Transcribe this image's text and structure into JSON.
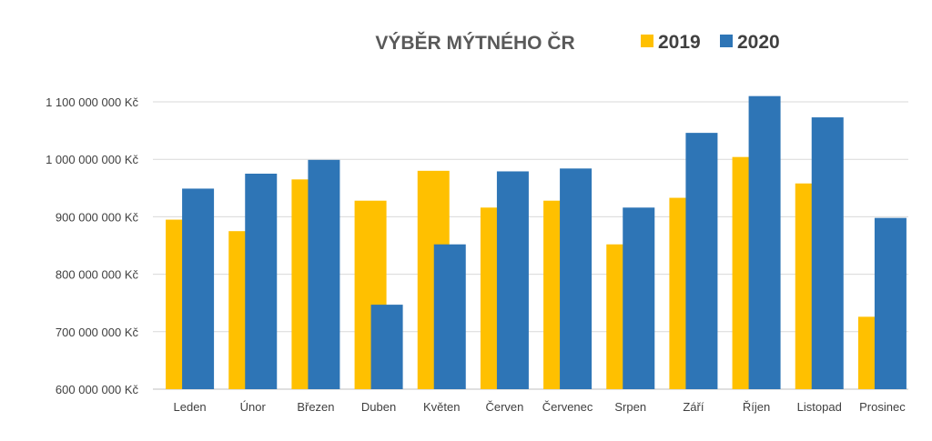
{
  "chart_data": {
    "type": "bar",
    "title": "VÝBĚR MÝTNÉHO ČR",
    "xlabel": "",
    "ylabel": "",
    "categories": [
      "Leden",
      "Únor",
      "Březen",
      "Duben",
      "Květen",
      "Červen",
      "Červenec",
      "Srpen",
      "Září",
      "Říjen",
      "Listopad",
      "Prosinec"
    ],
    "series": [
      {
        "name": "2019",
        "color": "#FFC000",
        "values": [
          895000000,
          875000000,
          965000000,
          928000000,
          980000000,
          916000000,
          928000000,
          852000000,
          933000000,
          1004000000,
          958000000,
          726000000
        ]
      },
      {
        "name": "2020",
        "color": "#2E75B6",
        "values": [
          949000000,
          975000000,
          999000000,
          747000000,
          852000000,
          979000000,
          984000000,
          916000000,
          1046000000,
          1110000000,
          1073000000,
          898000000
        ]
      }
    ],
    "ylim": [
      600000000,
      1100000000
    ],
    "yticks": [
      600000000,
      700000000,
      800000000,
      900000000,
      1000000000,
      1100000000
    ],
    "ytick_labels": [
      "600 000 000 Kč",
      "700 000 000 Kč",
      "800 000 000 Kč",
      "900 000 000 Kč",
      "1 000 000 000 Kč",
      "1 100 000 000 Kč"
    ],
    "grid": true,
    "legend_position": "top-right"
  }
}
